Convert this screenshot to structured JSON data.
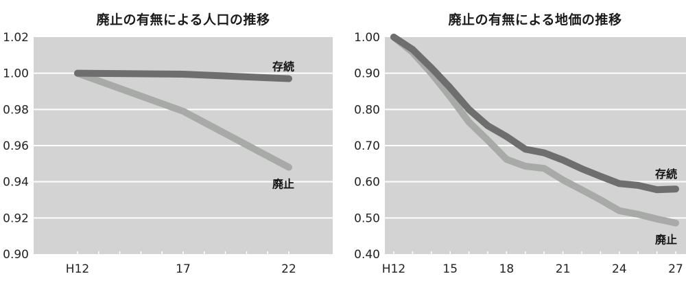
{
  "chart_data": [
    {
      "type": "line",
      "title": "廃止の有無による人口の推移",
      "xlabel": "",
      "ylabel": "",
      "x": [
        "H12",
        "17",
        "22"
      ],
      "x_tick_labels": [
        "H12",
        "17",
        "22"
      ],
      "y_tick_labels": [
        "1.02",
        "1.00",
        "0.98",
        "0.96",
        "0.94",
        "0.92",
        "0.90"
      ],
      "ylim": [
        0.9,
        1.02
      ],
      "grid": true,
      "legend_position": "inline-end",
      "series": [
        {
          "name": "存続",
          "color": "#6e6e6e",
          "values": [
            1.0,
            0.9995,
            0.997
          ]
        },
        {
          "name": "廃止",
          "color": "#a8aaa8",
          "values": [
            1.0,
            0.979,
            0.948
          ]
        }
      ]
    },
    {
      "type": "line",
      "title": "廃止の有無による地価の推移",
      "xlabel": "",
      "ylabel": "",
      "x": [
        "H12",
        "13",
        "14",
        "15",
        "16",
        "17",
        "18",
        "19",
        "20",
        "21",
        "22",
        "23",
        "24",
        "25",
        "26",
        "27"
      ],
      "x_tick_labels": [
        "H12",
        "15",
        "18",
        "21",
        "24",
        "27"
      ],
      "y_tick_labels": [
        "1.00",
        "0.90",
        "0.80",
        "0.70",
        "0.60",
        "0.50",
        "0.40"
      ],
      "ylim": [
        0.4,
        1.0
      ],
      "grid": true,
      "legend_position": "inline-end",
      "series": [
        {
          "name": "存続",
          "color": "#6e6e6e",
          "values": [
            1.0,
            0.966,
            0.915,
            0.86,
            0.8,
            0.755,
            0.725,
            0.69,
            0.68,
            0.66,
            0.636,
            0.615,
            0.595,
            0.59,
            0.578,
            0.58
          ]
        },
        {
          "name": "廃止",
          "color": "#a8aaa8",
          "values": [
            1.0,
            0.958,
            0.9,
            0.835,
            0.765,
            0.715,
            0.662,
            0.643,
            0.637,
            0.605,
            0.578,
            0.55,
            0.52,
            0.51,
            0.497,
            0.486
          ]
        }
      ]
    }
  ],
  "colors": {
    "plot_background": "#d3d3d3",
    "gridline": "#ffffff",
    "text": "#222222"
  }
}
